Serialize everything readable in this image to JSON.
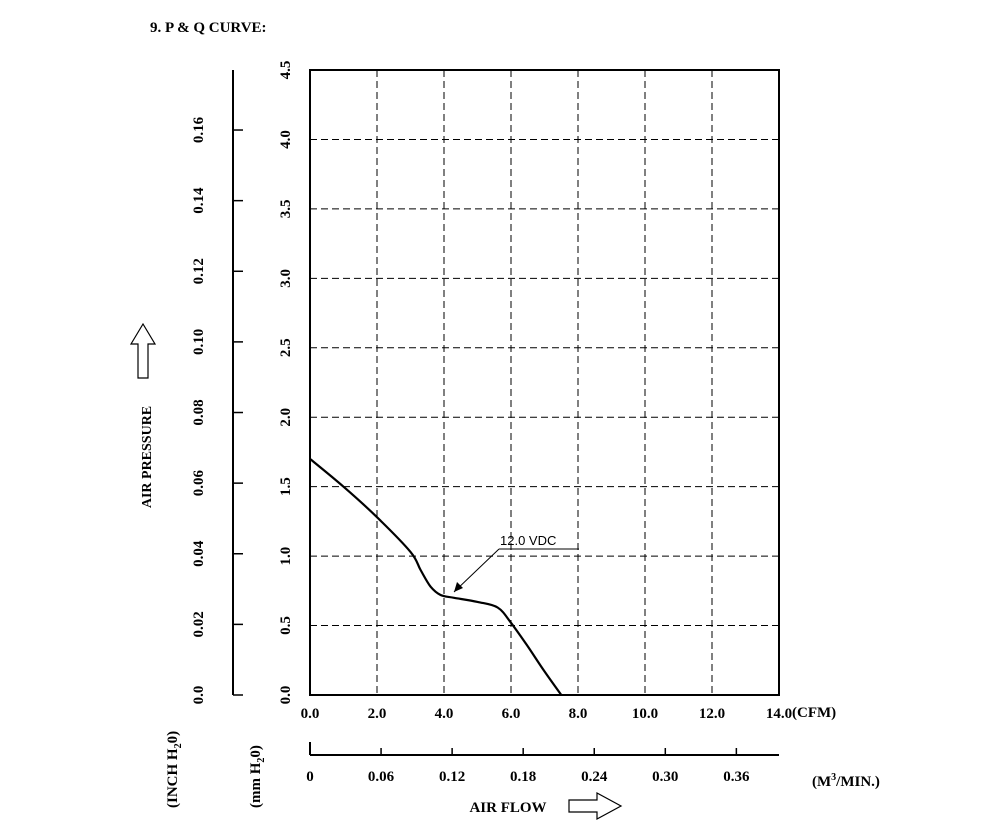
{
  "heading": "9. P & Q CURVE:",
  "chart_data": {
    "type": "line",
    "title": "9. P & Q CURVE:",
    "xlabel": "AIR FLOW",
    "ylabel": "AIR PRESSURE",
    "x_unit": "(CFM)",
    "x2_unit_main": "(M",
    "x2_unit_sup": "3",
    "x2_unit_tail": "/MIN.)",
    "y_unit_mm": {
      "a": "(mm H",
      "sub": "2",
      "b": "0)"
    },
    "y_unit_inch": {
      "a": "(INCH H",
      "sub": "2",
      "b": "0)"
    },
    "xlim": [
      0,
      14
    ],
    "ylim": [
      0,
      4.5
    ],
    "x_ticks": [
      "0.0",
      "2.0",
      "4.0",
      "6.0",
      "8.0",
      "10.0",
      "12.0",
      "14.0"
    ],
    "x_tick_values": [
      0,
      2,
      4,
      6,
      8,
      10,
      12,
      14
    ],
    "y_ticks": [
      "0.0",
      "0.5",
      "1.0",
      "1.5",
      "2.0",
      "2.5",
      "3.0",
      "3.5",
      "4.0",
      "4.5"
    ],
    "y_tick_values": [
      0,
      0.5,
      1.0,
      1.5,
      2.0,
      2.5,
      3.0,
      3.5,
      4.0,
      4.5
    ],
    "x2_ticks": [
      "0",
      "0.06",
      "0.12",
      "0.18",
      "0.24",
      "0.30",
      "0.36"
    ],
    "x2_tick_values": [
      0,
      0.06,
      0.12,
      0.18,
      0.24,
      0.3,
      0.36
    ],
    "x2_max": 0.396,
    "y2_ticks": [
      "0.0",
      "0.02",
      "0.04",
      "0.06",
      "0.08",
      "0.10",
      "0.12",
      "0.14",
      "0.16"
    ],
    "y2_tick_values": [
      0,
      0.02,
      0.04,
      0.06,
      0.08,
      0.1,
      0.12,
      0.14,
      0.16
    ],
    "y2_max": 0.177,
    "grid": true,
    "series": [
      {
        "name": "12.0 VDC",
        "x": [
          0.0,
          1.0,
          2.0,
          3.0,
          3.3,
          3.6,
          3.9,
          4.3,
          5.0,
          5.6,
          6.0,
          6.5,
          7.0,
          7.5
        ],
        "y": [
          1.7,
          1.5,
          1.28,
          1.03,
          0.9,
          0.78,
          0.72,
          0.7,
          0.67,
          0.63,
          0.52,
          0.35,
          0.17,
          0.0
        ]
      }
    ],
    "annotation": {
      "text": "12.0 VDC",
      "x": 4.3,
      "y": 0.72
    }
  }
}
